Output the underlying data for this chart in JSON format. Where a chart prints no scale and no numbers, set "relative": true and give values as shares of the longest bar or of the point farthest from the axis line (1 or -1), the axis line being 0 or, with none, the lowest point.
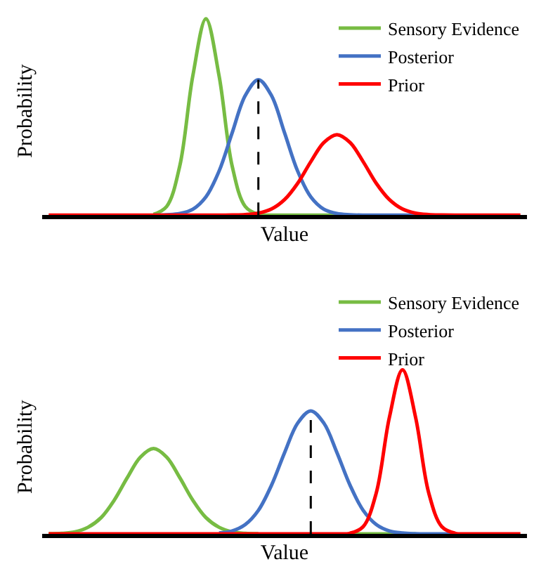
{
  "chart_data": [
    {
      "type": "line",
      "relative": true,
      "xlabel": "Value",
      "ylabel": "Probability",
      "legend": "top right",
      "marker": "none",
      "line_style": "solid",
      "categories": [
        null,
        null,
        null,
        null,
        null,
        null,
        null,
        null,
        null,
        null,
        null,
        null,
        null,
        null,
        null,
        null,
        null,
        null,
        null,
        null,
        null,
        null,
        null,
        null,
        null,
        null,
        null,
        null,
        null,
        null,
        null,
        null,
        null,
        null,
        null,
        null,
        null
      ],
      "series": [
        {
          "name": "Sensory Evidence",
          "color": "#77bc43",
          "values": [
            null,
            null,
            null,
            null,
            null,
            null,
            null,
            null,
            0.004,
            0.044,
            0.25,
            0.71,
            1,
            0.71,
            0.25,
            0.044,
            0.004,
            0,
            0,
            0,
            0,
            0,
            0,
            null,
            null,
            null,
            null,
            null,
            null,
            null,
            null,
            null,
            null,
            null,
            null,
            null,
            null
          ]
        },
        {
          "name": "Posterior",
          "color": "#4472c4",
          "values": [
            null,
            null,
            null,
            null,
            null,
            null,
            null,
            null,
            0,
            0.002,
            0.008,
            0.03,
            0.093,
            0.224,
            0.419,
            0.609,
            0.69,
            0.609,
            0.419,
            0.224,
            0.093,
            0.03,
            0.008,
            0.002,
            0,
            0,
            0,
            0,
            0,
            0,
            null,
            null,
            null,
            null,
            null,
            null,
            null
          ]
        },
        {
          "name": "Prior",
          "color": "#ff0000",
          "values": [
            0,
            0,
            0,
            0,
            0,
            0,
            0,
            0,
            0,
            0,
            0,
            0,
            0,
            0,
            0.001,
            0.003,
            0.01,
            0.031,
            0.079,
            0.162,
            0.272,
            0.37,
            0.41,
            0.37,
            0.272,
            0.162,
            0.079,
            0.031,
            0.01,
            0.003,
            0.001,
            0,
            0,
            0,
            0,
            0,
            0
          ]
        }
      ]
    },
    {
      "type": "line",
      "relative": true,
      "xlabel": "Value",
      "ylabel": "Probability",
      "legend": "top right",
      "marker": "none",
      "line_style": "solid",
      "categories": [
        null,
        null,
        null,
        null,
        null,
        null,
        null,
        null,
        null,
        null,
        null,
        null,
        null,
        null,
        null,
        null,
        null,
        null,
        null,
        null,
        null,
        null,
        null,
        null,
        null,
        null,
        null,
        null,
        null,
        null,
        null,
        null,
        null,
        null,
        null,
        null,
        null
      ],
      "series": [
        {
          "name": "Sensory Evidence",
          "color": "#77bc43",
          "values": [
            0.001,
            0.003,
            0.012,
            0.04,
            0.099,
            0.205,
            0.343,
            0.468,
            0.52,
            0.468,
            0.343,
            0.205,
            0.099,
            0.04,
            0.012,
            0.003,
            0.001,
            null,
            null,
            null,
            null,
            null,
            null,
            0,
            0,
            0,
            0,
            0,
            0,
            null,
            null,
            null,
            null,
            null,
            null,
            null,
            null
          ]
        },
        {
          "name": "Posterior",
          "color": "#4472c4",
          "values": [
            null,
            null,
            null,
            null,
            null,
            null,
            null,
            null,
            null,
            null,
            null,
            null,
            null,
            0.005,
            0.018,
            0.057,
            0.143,
            0.296,
            0.495,
            0.675,
            0.75,
            0.675,
            0.495,
            0.296,
            0.143,
            0.057,
            0.018,
            0.005,
            0.001,
            0,
            0,
            0,
            null,
            null,
            null,
            null,
            null
          ]
        },
        {
          "name": "Prior",
          "color": "#ff0000",
          "values": [
            0,
            0,
            0,
            0,
            0,
            0,
            0,
            0,
            0,
            0,
            0,
            0,
            0,
            0,
            0,
            0,
            0,
            0,
            0,
            0,
            0,
            0,
            0,
            0.004,
            0.044,
            0.25,
            0.71,
            1,
            0.71,
            0.25,
            0.044,
            0.004,
            0,
            0,
            0,
            0,
            0
          ]
        }
      ]
    }
  ]
}
